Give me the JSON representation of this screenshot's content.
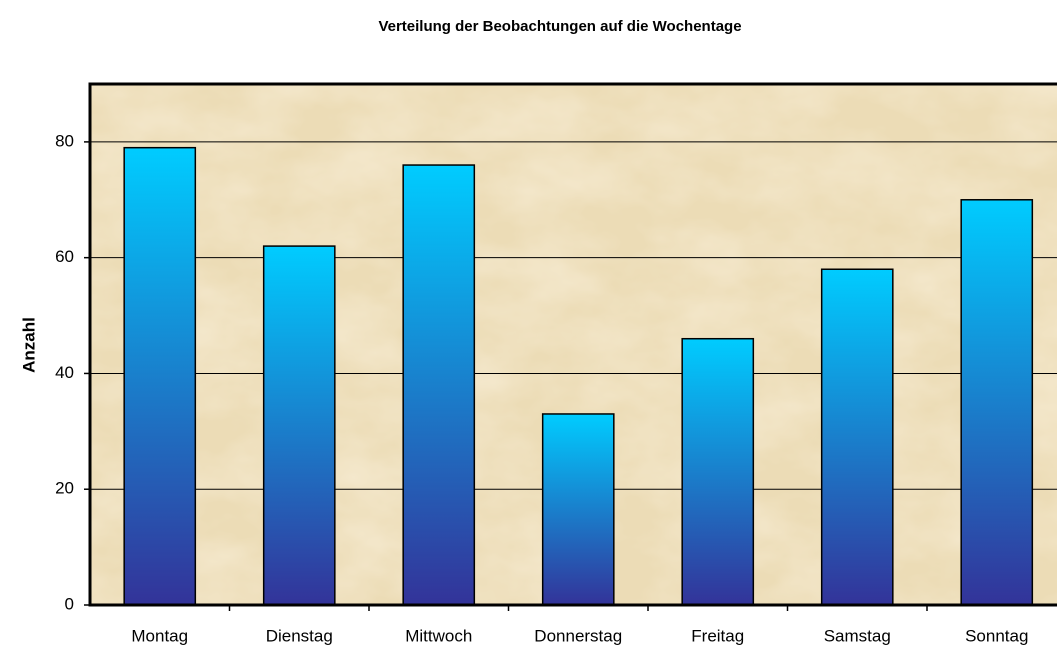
{
  "chart_data": {
    "type": "bar",
    "title": "Verteilung der Beobachtungen auf die Wochentage",
    "y_label": "Anzahl",
    "categories": [
      "Montag",
      "Dienstag",
      "Mittwoch",
      "Donnerstag",
      "Freitag",
      "Samstag",
      "Sonntag"
    ],
    "values": [
      79,
      62,
      76,
      33,
      46,
      58,
      70
    ],
    "color": [
      "#00ccff",
      "#333399"
    ],
    "ylim": [
      0,
      90
    ],
    "yticks": [
      0,
      20,
      40,
      60,
      80
    ],
    "grid": true
  }
}
